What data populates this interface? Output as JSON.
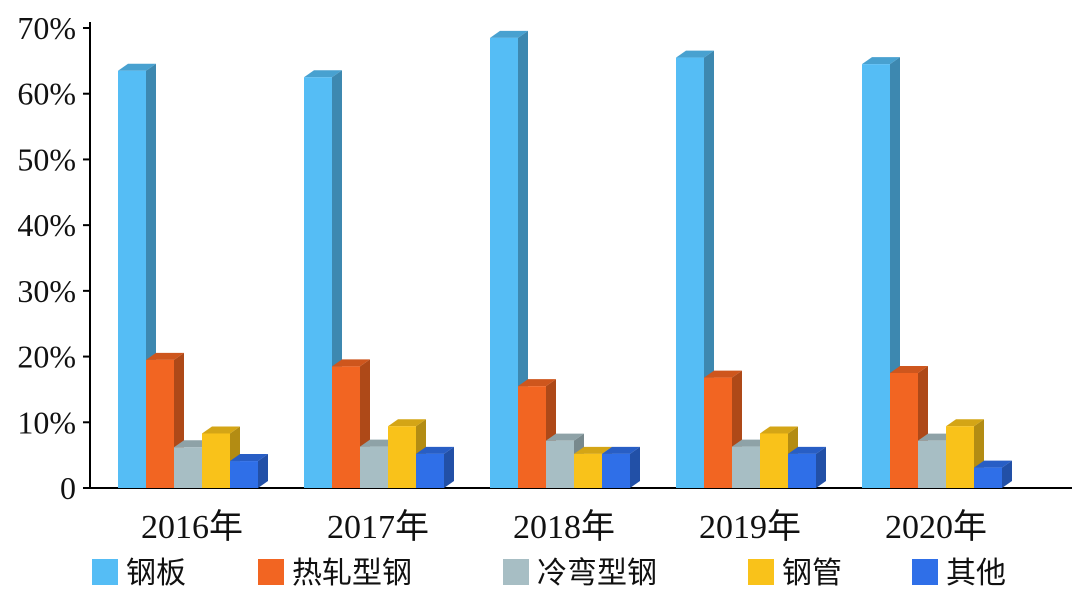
{
  "chart_data": {
    "type": "bar",
    "title": "",
    "xlabel": "",
    "ylabel": "",
    "categories": [
      "2016年",
      "2017年",
      "2018年",
      "2019年",
      "2020年"
    ],
    "ylim": [
      0,
      70
    ],
    "yticks": [
      {
        "value": 0,
        "label": "0"
      },
      {
        "value": 10,
        "label": "10%"
      },
      {
        "value": 20,
        "label": "20%"
      },
      {
        "value": 30,
        "label": "30%"
      },
      {
        "value": 40,
        "label": "40%"
      },
      {
        "value": 50,
        "label": "50%"
      },
      {
        "value": 60,
        "label": "60%"
      },
      {
        "value": 70,
        "label": "70%"
      }
    ],
    "grid": false,
    "style": "3d-bars",
    "legend_position": "bottom",
    "series": [
      {
        "name": "钢板",
        "color": "#55BDF5",
        "values": [
          63.5,
          62.5,
          68.5,
          65.5,
          64.5
        ]
      },
      {
        "name": "热轧型钢",
        "color": "#F26522",
        "values": [
          19.5,
          18.5,
          15.5,
          16.8,
          17.5
        ]
      },
      {
        "name": "冷弯型钢",
        "color": "#A7BEC4",
        "values": [
          6.2,
          6.3,
          7.2,
          6.3,
          7.2
        ]
      },
      {
        "name": "钢管",
        "color": "#F9C21A",
        "values": [
          8.3,
          9.4,
          5.2,
          8.3,
          9.4
        ]
      },
      {
        "name": "其他",
        "color": "#2F6FE8",
        "values": [
          4.1,
          5.2,
          5.2,
          5.2,
          3.1
        ]
      }
    ]
  }
}
